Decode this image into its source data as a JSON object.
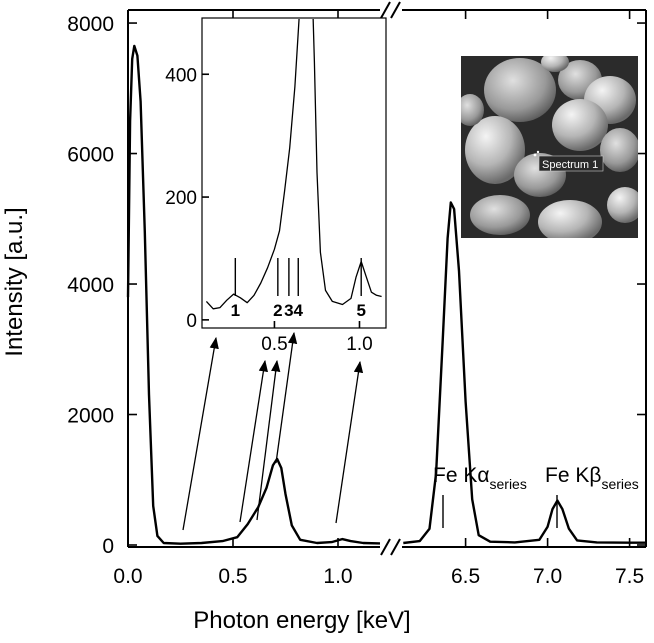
{
  "chart_data": {
    "type": "line",
    "xlabel": "Photon energy [keV]",
    "ylabel": "Intensity [a.u.]",
    "ylim": [
      0,
      8200
    ],
    "yticks": [
      0,
      2000,
      4000,
      6000,
      8000
    ],
    "xaxis_break": true,
    "xsegments": [
      {
        "range": [
          0.0,
          1.2
        ],
        "ticks": [
          {
            "v": 0.0,
            "label": "0.0"
          },
          {
            "v": 0.5,
            "label": "0.5"
          },
          {
            "v": 1.0,
            "label": "1.0"
          }
        ]
      },
      {
        "range": [
          6.1,
          7.6
        ],
        "ticks": [
          {
            "v": 6.5,
            "label": "6.5"
          },
          {
            "v": 7.0,
            "label": "7.0"
          },
          {
            "v": 7.5,
            "label": "7.5"
          }
        ]
      }
    ],
    "series": [
      {
        "values": [
          [
            0.0,
            3800
          ],
          [
            0.01,
            6500
          ],
          [
            0.02,
            7450
          ],
          [
            0.03,
            7650
          ],
          [
            0.045,
            7500
          ],
          [
            0.06,
            6800
          ],
          [
            0.08,
            4800
          ],
          [
            0.1,
            2300
          ],
          [
            0.12,
            600
          ],
          [
            0.14,
            140
          ],
          [
            0.17,
            30
          ],
          [
            0.25,
            20
          ],
          [
            0.35,
            30
          ],
          [
            0.45,
            60
          ],
          [
            0.52,
            120
          ],
          [
            0.57,
            320
          ],
          [
            0.62,
            580
          ],
          [
            0.66,
            880
          ],
          [
            0.69,
            1220
          ],
          [
            0.71,
            1320
          ],
          [
            0.73,
            1180
          ],
          [
            0.75,
            780
          ],
          [
            0.78,
            300
          ],
          [
            0.82,
            80
          ],
          [
            0.9,
            30
          ],
          [
            0.97,
            45
          ],
          [
            1.02,
            90
          ],
          [
            1.06,
            60
          ],
          [
            1.12,
            30
          ],
          [
            1.2,
            25
          ],
          [
            6.12,
            30
          ],
          [
            6.22,
            60
          ],
          [
            6.28,
            250
          ],
          [
            6.32,
            1100
          ],
          [
            6.36,
            3100
          ],
          [
            6.39,
            4700
          ],
          [
            6.41,
            5250
          ],
          [
            6.43,
            5150
          ],
          [
            6.46,
            4200
          ],
          [
            6.5,
            2200
          ],
          [
            6.54,
            700
          ],
          [
            6.58,
            150
          ],
          [
            6.65,
            50
          ],
          [
            6.8,
            40
          ],
          [
            6.95,
            80
          ],
          [
            7.0,
            280
          ],
          [
            7.03,
            550
          ],
          [
            7.06,
            680
          ],
          [
            7.09,
            550
          ],
          [
            7.13,
            250
          ],
          [
            7.18,
            70
          ],
          [
            7.3,
            40
          ],
          [
            7.5,
            35
          ],
          [
            7.6,
            35
          ]
        ]
      }
    ],
    "annotations": [
      {
        "text": "Fe Kα",
        "sub": "series",
        "x": 6.43
      },
      {
        "text": "Fe Kβ",
        "sub": "series",
        "x": 7.06
      }
    ],
    "inset": {
      "xticks": [
        {
          "v": 0.5,
          "label": "0.5"
        },
        {
          "v": 1.0,
          "label": "1.0"
        }
      ],
      "yticks": [
        0,
        200,
        400
      ],
      "xlim": [
        0.08,
        1.15
      ],
      "ylim": [
        -10,
        490
      ],
      "markers": [
        {
          "label": "1",
          "x": 0.27
        },
        {
          "label": "2",
          "x": 0.52
        },
        {
          "label": "3",
          "x": 0.585
        },
        {
          "label": "4",
          "x": 0.64
        },
        {
          "label": "5",
          "x": 1.01
        }
      ],
      "values": [
        [
          0.1,
          30
        ],
        [
          0.14,
          18
        ],
        [
          0.18,
          20
        ],
        [
          0.22,
          32
        ],
        [
          0.26,
          42
        ],
        [
          0.3,
          36
        ],
        [
          0.34,
          28
        ],
        [
          0.38,
          40
        ],
        [
          0.42,
          60
        ],
        [
          0.46,
          85
        ],
        [
          0.5,
          115
        ],
        [
          0.53,
          145
        ],
        [
          0.56,
          210
        ],
        [
          0.59,
          280
        ],
        [
          0.62,
          380
        ],
        [
          0.64,
          470
        ],
        [
          0.66,
          560
        ],
        [
          0.72,
          560
        ],
        [
          0.735,
          420
        ],
        [
          0.75,
          240
        ],
        [
          0.77,
          110
        ],
        [
          0.8,
          48
        ],
        [
          0.84,
          30
        ],
        [
          0.9,
          25
        ],
        [
          0.95,
          35
        ],
        [
          0.98,
          70
        ],
        [
          1.01,
          95
        ],
        [
          1.04,
          70
        ],
        [
          1.07,
          45
        ],
        [
          1.1,
          40
        ],
        [
          1.13,
          38
        ]
      ]
    },
    "photo": {
      "label": "Spectrum 1"
    }
  }
}
